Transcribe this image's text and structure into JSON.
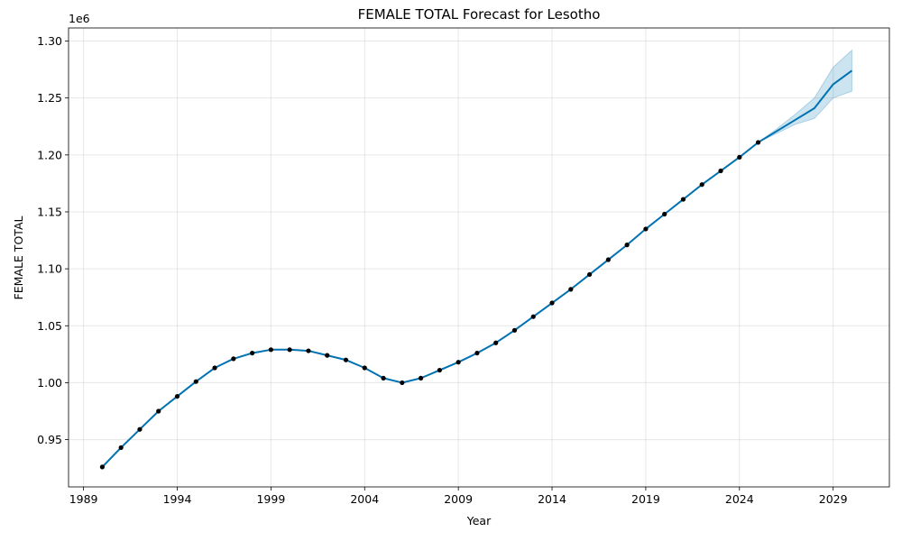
{
  "chart_data": {
    "type": "line",
    "title": "FEMALE TOTAL Forecast for Lesotho",
    "xlabel": "Year",
    "ylabel": "FEMALE TOTAL",
    "y_offset_label": "1e6",
    "xlim": [
      1988.2,
      2032.0
    ],
    "ylim": [
      0.9085,
      1.3115
    ],
    "x_ticks": [
      1989,
      1994,
      1999,
      2004,
      2009,
      2014,
      2019,
      2024,
      2029
    ],
    "x_tick_labels": [
      "1989",
      "1994",
      "1999",
      "2004",
      "2009",
      "2014",
      "2019",
      "2024",
      "2029"
    ],
    "y_ticks": [
      0.95,
      1.0,
      1.05,
      1.1,
      1.15,
      1.2,
      1.25,
      1.3
    ],
    "y_tick_labels": [
      "0.95",
      "1.00",
      "1.05",
      "1.10",
      "1.15",
      "1.20",
      "1.25",
      "1.30"
    ],
    "grid": true,
    "colors": {
      "line": "#0072B2",
      "band": "#0072B2",
      "points": "#000000"
    },
    "observed": {
      "x": [
        1990,
        1991,
        1992,
        1993,
        1994,
        1995,
        1996,
        1997,
        1998,
        1999,
        2000,
        2001,
        2002,
        2003,
        2004,
        2005,
        2006,
        2007,
        2008,
        2009,
        2010,
        2011,
        2012,
        2013,
        2014,
        2015,
        2016,
        2017,
        2018,
        2019,
        2020,
        2021,
        2022,
        2023,
        2024,
        2025
      ],
      "y": [
        0.926,
        0.943,
        0.959,
        0.975,
        0.988,
        1.001,
        1.013,
        1.021,
        1.026,
        1.029,
        1.029,
        1.028,
        1.024,
        1.02,
        1.013,
        1.004,
        1.0,
        1.004,
        1.011,
        1.018,
        1.026,
        1.035,
        1.046,
        1.058,
        1.07,
        1.082,
        1.095,
        1.108,
        1.121,
        1.135,
        1.148,
        1.161,
        1.174,
        1.186,
        1.198,
        1.211
      ]
    },
    "forecast": {
      "x": [
        1990,
        1991,
        1992,
        1993,
        1994,
        1995,
        1996,
        1997,
        1998,
        1999,
        2000,
        2001,
        2002,
        2003,
        2004,
        2005,
        2006,
        2007,
        2008,
        2009,
        2010,
        2011,
        2012,
        2013,
        2014,
        2015,
        2016,
        2017,
        2018,
        2019,
        2020,
        2021,
        2022,
        2023,
        2024,
        2025,
        2026,
        2027,
        2028,
        2029,
        2030
      ],
      "y": [
        0.926,
        0.943,
        0.959,
        0.975,
        0.988,
        1.001,
        1.013,
        1.021,
        1.026,
        1.029,
        1.029,
        1.028,
        1.024,
        1.02,
        1.013,
        1.004,
        1.0,
        1.004,
        1.011,
        1.018,
        1.026,
        1.035,
        1.046,
        1.058,
        1.07,
        1.082,
        1.095,
        1.108,
        1.121,
        1.135,
        1.148,
        1.161,
        1.174,
        1.186,
        1.198,
        1.211,
        1.221,
        1.231,
        1.241,
        1.262,
        1.274
      ],
      "lower": [
        0.926,
        0.943,
        0.959,
        0.975,
        0.988,
        1.001,
        1.013,
        1.021,
        1.026,
        1.029,
        1.029,
        1.028,
        1.024,
        1.02,
        1.013,
        1.004,
        1.0,
        1.004,
        1.011,
        1.018,
        1.026,
        1.035,
        1.046,
        1.058,
        1.07,
        1.082,
        1.095,
        1.108,
        1.121,
        1.135,
        1.148,
        1.161,
        1.174,
        1.186,
        1.198,
        1.211,
        1.219,
        1.227,
        1.232,
        1.25,
        1.256
      ],
      "upper": [
        0.926,
        0.943,
        0.959,
        0.975,
        0.988,
        1.001,
        1.013,
        1.021,
        1.026,
        1.029,
        1.029,
        1.028,
        1.024,
        1.02,
        1.013,
        1.004,
        1.0,
        1.004,
        1.011,
        1.018,
        1.026,
        1.035,
        1.046,
        1.058,
        1.07,
        1.082,
        1.095,
        1.108,
        1.121,
        1.135,
        1.148,
        1.161,
        1.174,
        1.186,
        1.198,
        1.211,
        1.223,
        1.236,
        1.25,
        1.277,
        1.292
      ]
    }
  }
}
